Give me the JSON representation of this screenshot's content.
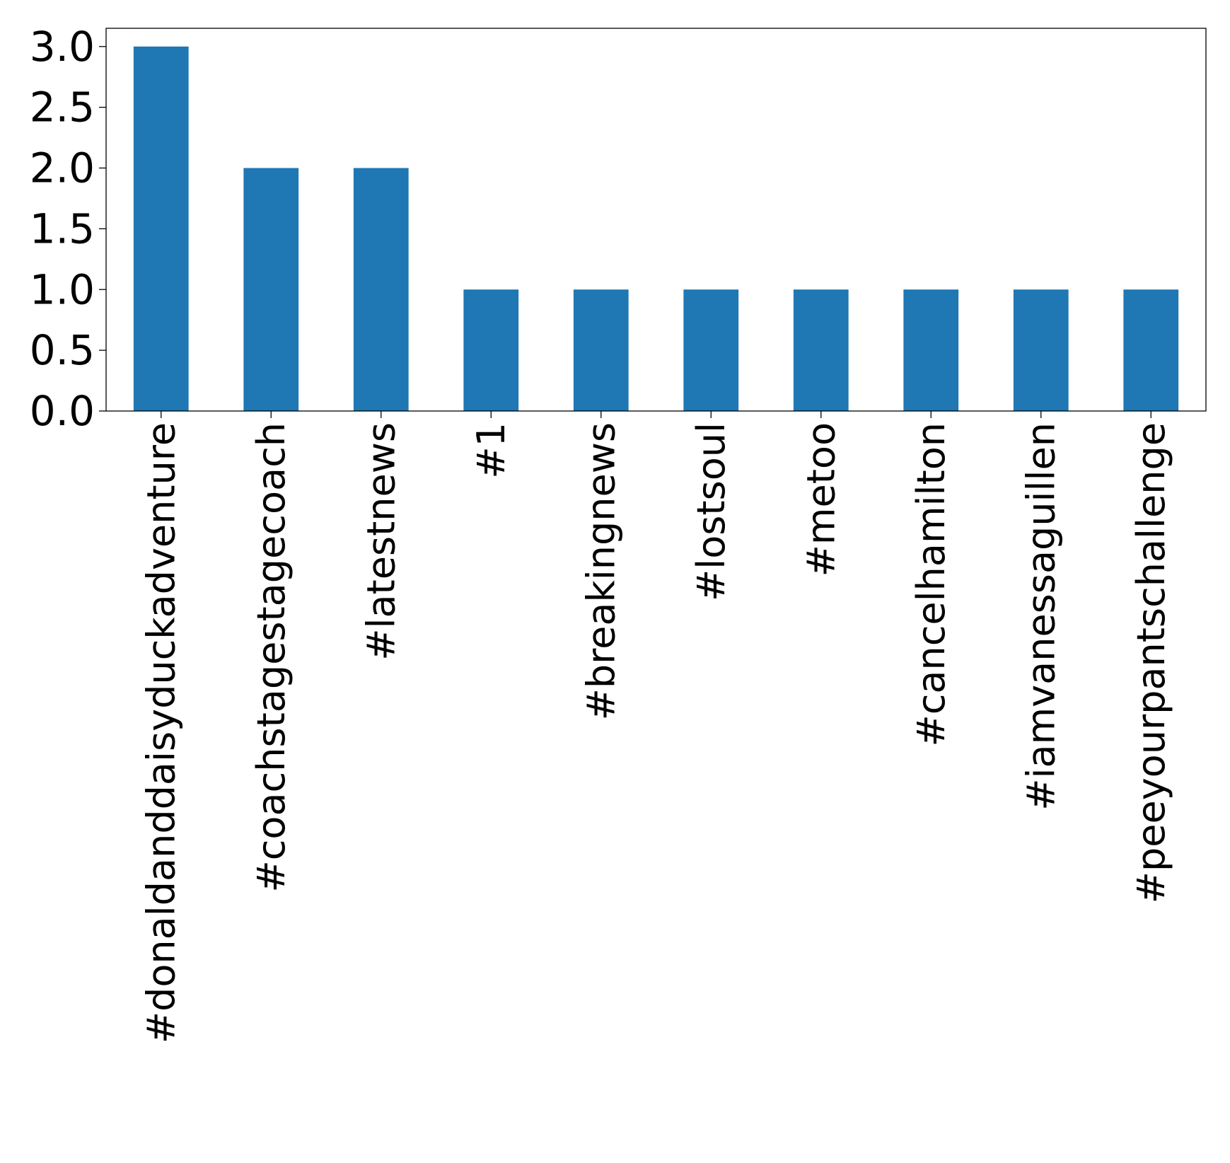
{
  "chart_data": {
    "type": "bar",
    "title": "",
    "xlabel": "",
    "ylabel": "",
    "categories": [
      "#donaldanddaisyduckadventure",
      "#coachstagestagecoach",
      "#latestnews",
      "#1",
      "#breakingnews",
      "#lostsoul",
      "#metoo",
      "#cancelhamilton",
      "#iamvanessaguillen",
      "#peeyourpantschallenge"
    ],
    "values": [
      3,
      2,
      2,
      1,
      1,
      1,
      1,
      1,
      1,
      1
    ],
    "ylim": [
      0,
      3.15
    ],
    "yticks": [
      "0.0",
      "0.5",
      "1.0",
      "1.5",
      "2.0",
      "2.5",
      "3.0"
    ],
    "grid": false,
    "legend": "none",
    "bar_color": "#1f77b4",
    "axis_color": "#000000"
  }
}
